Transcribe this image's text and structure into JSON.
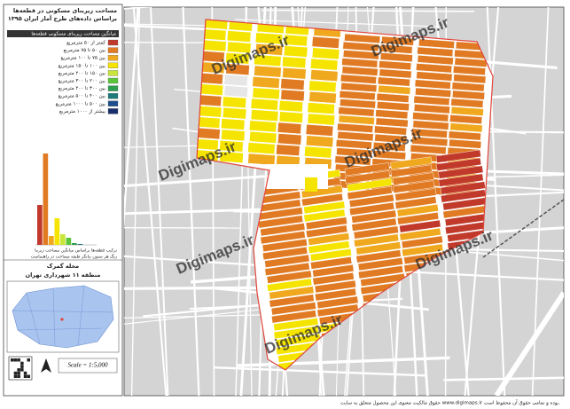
{
  "panel": {
    "title_lines": [
      "مساحت زیربنای مسکونی در قطعه‌ها",
      "براساس داده‌های طرح آمار ایران ۱۳۹۵"
    ],
    "legend_header": "میانگین مساحت زیربنای مسکونی قطعه‌ها",
    "legend": [
      {
        "label": "کمتر از ۵۰ مترمربع",
        "color": "#c0392b"
      },
      {
        "label": "بین ۵۰ تا ۷۵ مترمربع",
        "color": "#e07b24"
      },
      {
        "label": "بین ۷۵ تا ۱۰۰ مترمربع",
        "color": "#f0a81e"
      },
      {
        "label": "بین ۱۰۰ تا ۱۵۰ مترمربع",
        "color": "#f5e400"
      },
      {
        "label": "بین ۱۵۰ تا ۲۰۰ مترمربع",
        "color": "#c8e63a"
      },
      {
        "label": "بین ۲۰۰ تا ۳۰۰ مترمربع",
        "color": "#5cc63a"
      },
      {
        "label": "بین ۳۰۰ تا ۴۰۰ مترمربع",
        "color": "#2e9e4f"
      },
      {
        "label": "بین ۴۰۰ تا ۵۰۰ مترمربع",
        "color": "#1f7a7a"
      },
      {
        "label": "بین ۵۰۰ تا ۱۰۰۰ مترمربع",
        "color": "#1f4e8c"
      },
      {
        "label": "بیشتر از ۱۰۰۰ مترمربع",
        "color": "#1a2e6b"
      }
    ],
    "histogram": {
      "values": [
        45,
        103,
        10,
        30,
        12,
        8,
        2,
        1,
        0,
        0
      ]
    },
    "histogram_caption": [
      "ترکیب قطعه‌ها براساس میانگین مساحت زیربنا",
      "رنگ هر ستون بیانگر طبقه مساحت در راهنماست"
    ],
    "district": "محله گمرک",
    "region": "منطقه ۱۱ شهرداری تهران",
    "scale": "Scale = 1:5,000"
  },
  "watermark": "Digimaps.ir",
  "footer": "حقوق مالکیت معنوی این محصول متعلق به سایت www.digimaps.ir بوده و تمامی حقوق آن محفوظ است."
}
